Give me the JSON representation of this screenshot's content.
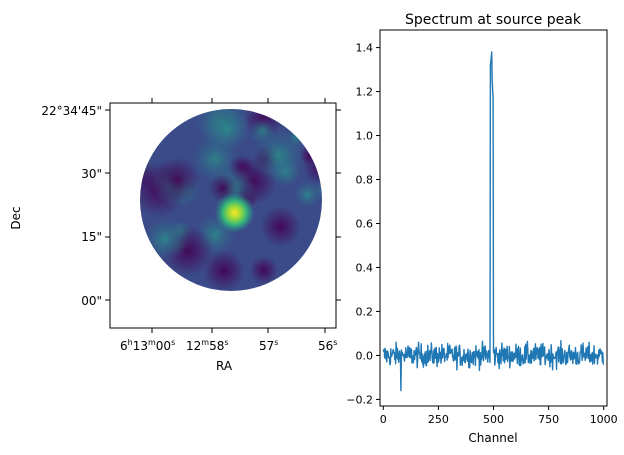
{
  "chart_data": [
    {
      "type": "heatmap",
      "title": "",
      "xlabel": "RA",
      "ylabel": "Dec",
      "x_ticks": [
        {
          "h": "6",
          "m": "13",
          "s": "00"
        },
        {
          "h": "",
          "m": "12",
          "s": "58"
        },
        {
          "h": "",
          "m": "",
          "s": "57"
        },
        {
          "h": "",
          "m": "",
          "s": "56"
        }
      ],
      "y_ticks": [
        "22°34'45\"",
        "30\"",
        "15\"",
        "00\""
      ],
      "colormap": "viridis",
      "source_peak_offset": [
        0.52,
        0.57
      ]
    },
    {
      "type": "line",
      "title": "Spectrum at source peak",
      "xlabel": "Channel",
      "ylabel": "",
      "xlim": [
        -15,
        1015
      ],
      "ylim": [
        -0.23,
        1.48
      ],
      "x_ticks": [
        "0",
        "250",
        "500",
        "750",
        "1000"
      ],
      "y_ticks": [
        "−0.2",
        "0.0",
        "0.2",
        "0.4",
        "0.6",
        "0.8",
        "1.0",
        "1.2",
        "1.4"
      ],
      "series": [
        {
          "color": "#1f77b4",
          "noise_level": 0.05,
          "peak_center_channel": 492,
          "peak_width_channels": 12,
          "peak_max": 1.38,
          "second_peak_max": 1.25,
          "min_value": -0.16,
          "min_channel": 80
        }
      ]
    }
  ]
}
